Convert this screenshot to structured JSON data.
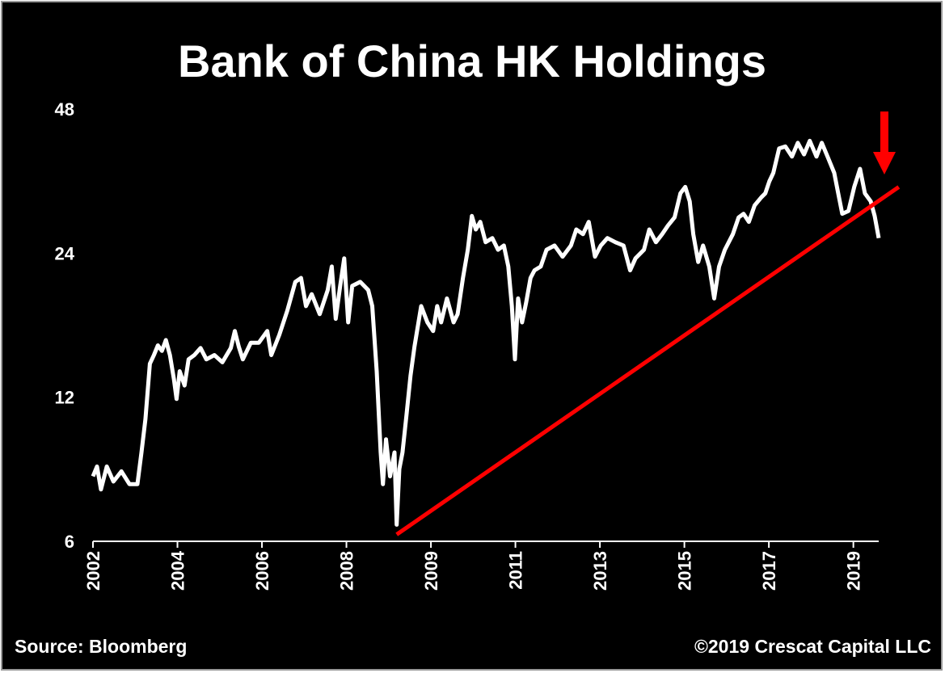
{
  "chart_data": {
    "type": "line",
    "title": "Bank of China HK Holdings",
    "source": "Source: Bloomberg",
    "copyright": "©2019 Crescat Capital LLC",
    "color": "#ffffff",
    "log_scale": true,
    "x": [
      2002.0,
      2002.09,
      2002.18,
      2002.31,
      2002.46,
      2002.64,
      2002.82,
      2003.0,
      2003.09,
      2003.18,
      2003.28,
      2003.37,
      2003.46,
      2003.55,
      2003.64,
      2003.73,
      2003.82,
      2003.88,
      2003.95,
      2004.06,
      2004.15,
      2004.28,
      2004.42,
      2004.55,
      2004.73,
      2004.91,
      2005.1,
      2005.19,
      2005.28,
      2005.37,
      2005.55,
      2005.73,
      2005.92,
      2006.01,
      2006.19,
      2006.37,
      2006.55,
      2006.68,
      2006.79,
      2006.92,
      2007.1,
      2007.28,
      2007.37,
      2007.46,
      2007.56,
      2007.65,
      2007.74,
      2007.83,
      2008.01,
      2008.19,
      2008.28,
      2008.38,
      2008.47,
      2008.52,
      2008.59,
      2008.68,
      2008.78,
      2008.83,
      2008.89,
      2008.96,
      2009.05,
      2009.14,
      2009.23,
      2009.38,
      2009.52,
      2009.65,
      2009.74,
      2009.83,
      2009.96,
      2010.11,
      2010.2,
      2010.32,
      2010.43,
      2010.52,
      2010.61,
      2010.71,
      2010.83,
      2010.98,
      2011.11,
      2011.24,
      2011.34,
      2011.42,
      2011.49,
      2011.56,
      2011.65,
      2011.74,
      2011.84,
      2011.93,
      2012.07,
      2012.2,
      2012.38,
      2012.56,
      2012.75,
      2012.87,
      2013.02,
      2013.15,
      2013.29,
      2013.42,
      2013.57,
      2013.75,
      2013.93,
      2014.08,
      2014.2,
      2014.39,
      2014.51,
      2014.66,
      2014.8,
      2014.93,
      2015.08,
      2015.21,
      2015.32,
      2015.42,
      2015.5,
      2015.61,
      2015.72,
      2015.86,
      2015.97,
      2016.08,
      2016.21,
      2016.39,
      2016.52,
      2016.63,
      2016.75,
      2016.88,
      2017.03,
      2017.12,
      2017.21,
      2017.3,
      2017.43,
      2017.57,
      2017.72,
      2017.85,
      2017.99,
      2018.12,
      2018.27,
      2018.39,
      2018.52,
      2018.67,
      2018.76,
      2018.85,
      2018.99,
      2019.12,
      2019.25,
      2019.36,
      2019.49,
      2019.58,
      2019.67
    ],
    "values": [
      8.2,
      8.6,
      7.7,
      8.6,
      8.0,
      8.4,
      7.9,
      7.9,
      9.2,
      10.8,
      14.1,
      14.7,
      15.4,
      15.0,
      15.8,
      14.7,
      13.1,
      11.9,
      13.6,
      12.7,
      14.4,
      14.7,
      15.2,
      14.4,
      14.7,
      14.2,
      15.2,
      16.5,
      15.3,
      14.4,
      15.6,
      15.6,
      16.5,
      14.7,
      16.2,
      18.2,
      20.9,
      21.3,
      18.6,
      19.7,
      17.9,
      20.1,
      22.5,
      17.5,
      20.5,
      23.4,
      17.2,
      20.5,
      20.9,
      20.1,
      18.6,
      13.6,
      9.2,
      7.9,
      9.8,
      8.2,
      9.2,
      6.5,
      8.5,
      9.2,
      11.0,
      13.3,
      15.3,
      18.6,
      17.2,
      16.5,
      18.6,
      17.2,
      19.3,
      17.2,
      17.9,
      21.3,
      24.4,
      28.7,
      26.9,
      27.9,
      25.3,
      25.8,
      24.4,
      24.9,
      22.5,
      18.6,
      14.4,
      19.3,
      17.2,
      18.9,
      21.3,
      22.1,
      22.5,
      24.4,
      24.9,
      23.6,
      24.9,
      26.9,
      26.3,
      27.9,
      23.6,
      24.9,
      25.8,
      25.3,
      24.9,
      22.1,
      23.4,
      24.4,
      26.9,
      25.3,
      26.3,
      27.4,
      28.5,
      32.0,
      33.0,
      30.8,
      26.3,
      23.0,
      24.9,
      22.5,
      19.3,
      22.5,
      24.4,
      26.3,
      28.5,
      29.0,
      27.9,
      30.2,
      31.4,
      32.0,
      33.9,
      35.3,
      39.7,
      40.1,
      38.2,
      40.8,
      38.6,
      41.2,
      38.2,
      40.8,
      38.2,
      35.3,
      32.0,
      29.0,
      29.4,
      33.0,
      36.0,
      32.0,
      30.8,
      28.7,
      25.8
    ],
    "trendline": {
      "x": [
        2008.83,
        2020.12
      ],
      "values": [
        6.2,
        33.0
      ],
      "color": "#ff0000"
    },
    "xlim": [
      2002,
      2019.67
    ],
    "xticks": [
      {
        "value": 2002.0,
        "label": "2002"
      },
      {
        "value": 2003.9,
        "label": "2004"
      },
      {
        "value": 2005.8,
        "label": "2006"
      },
      {
        "value": 2007.7,
        "label": "2008"
      },
      {
        "value": 2009.6,
        "label": "2009"
      },
      {
        "value": 2011.5,
        "label": "2011"
      },
      {
        "value": 2013.4,
        "label": "2013"
      },
      {
        "value": 2015.3,
        "label": "2015"
      },
      {
        "value": 2017.2,
        "label": "2017"
      },
      {
        "value": 2019.1,
        "label": "2019"
      }
    ],
    "ylim": [
      6,
      48
    ],
    "yticks": [
      6,
      12,
      24,
      48
    ]
  }
}
